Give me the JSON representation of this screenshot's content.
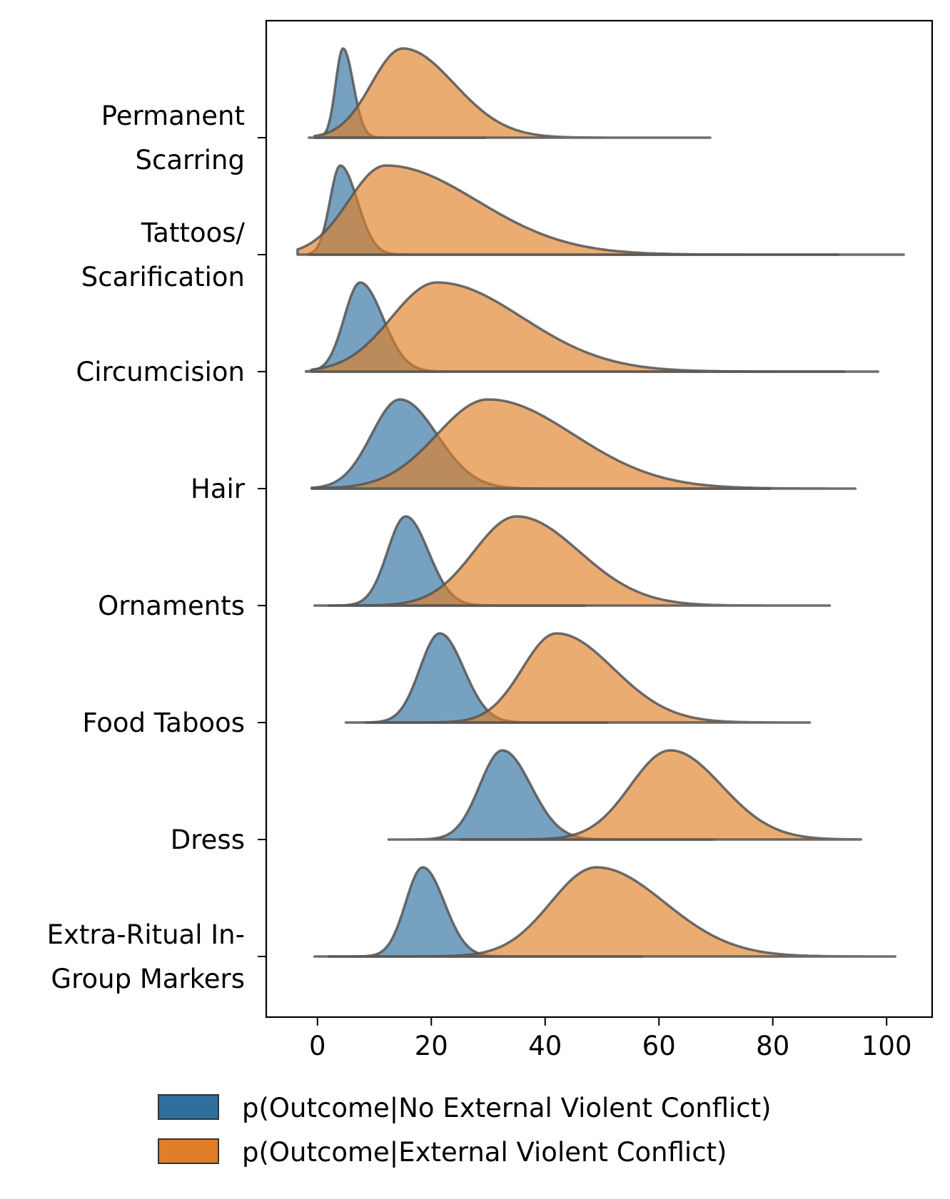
{
  "chart_data": {
    "type": "ridgeline-density",
    "title": "",
    "xlabel": "",
    "ylabel": "",
    "xlim": [
      -9,
      108
    ],
    "xticks": [
      0,
      20,
      40,
      60,
      80,
      100
    ],
    "grid": false,
    "legend_position": "bottom-center",
    "categories": [
      "Permanent\nScarring",
      "Tattoos/\nScarification",
      "Circumcision",
      "Hair",
      "Ornaments",
      "Food Taboos",
      "Dress",
      "Extra-Ritual In-\nGroup Markers"
    ],
    "series": [
      {
        "name": "p(Outcome|No External Violent Conflict)",
        "color": "#2e6f9e",
        "distributions": [
          {
            "mode": 4.5,
            "sd_left": 1.3,
            "sd_right": 1.8,
            "min": -1.5,
            "max": 29.5
          },
          {
            "mode": 4.0,
            "sd_left": 1.8,
            "sd_right": 3.0,
            "min": -1.5,
            "max": 91.5
          },
          {
            "mode": 7.5,
            "sd_left": 2.8,
            "sd_right": 4.0,
            "min": -2.0,
            "max": 92.5
          },
          {
            "mode": 14.5,
            "sd_left": 5.0,
            "sd_right": 6.5,
            "min": -1.0,
            "max": 79.5
          },
          {
            "mode": 15.5,
            "sd_left": 3.2,
            "sd_right": 4.0,
            "min": -0.5,
            "max": 47.0
          },
          {
            "mode": 21.5,
            "sd_left": 3.5,
            "sd_right": 4.2,
            "min": 5.0,
            "max": 51.0
          },
          {
            "mode": 32.5,
            "sd_left": 4.0,
            "sd_right": 5.0,
            "min": 12.5,
            "max": 69.5
          },
          {
            "mode": 18.5,
            "sd_left": 3.0,
            "sd_right": 3.8,
            "min": -0.5,
            "max": 57.0
          }
        ]
      },
      {
        "name": "p(Outcome|External Violent Conflict)",
        "color": "#e07f27",
        "distributions": [
          {
            "mode": 15.0,
            "sd_left": 5.5,
            "sd_right": 9.0,
            "min": -0.5,
            "max": 69.0
          },
          {
            "mode": 12.0,
            "sd_left": 6.5,
            "sd_right": 16.0,
            "min": -3.5,
            "max": 103.0
          },
          {
            "mode": 21.0,
            "sd_left": 8.0,
            "sd_right": 15.0,
            "min": -1.0,
            "max": 98.5
          },
          {
            "mode": 30.0,
            "sd_left": 9.0,
            "sd_right": 15.0,
            "min": -1.0,
            "max": 94.5
          },
          {
            "mode": 35.0,
            "sd_left": 7.5,
            "sd_right": 11.0,
            "min": 2.0,
            "max": 90.0
          },
          {
            "mode": 42.0,
            "sd_left": 6.0,
            "sd_right": 10.0,
            "min": 8.5,
            "max": 86.5
          },
          {
            "mode": 62.0,
            "sd_left": 7.0,
            "sd_right": 9.0,
            "min": 25.0,
            "max": 95.5
          },
          {
            "mode": 49.0,
            "sd_left": 8.0,
            "sd_right": 12.0,
            "min": 2.0,
            "max": 101.5
          }
        ]
      }
    ]
  }
}
